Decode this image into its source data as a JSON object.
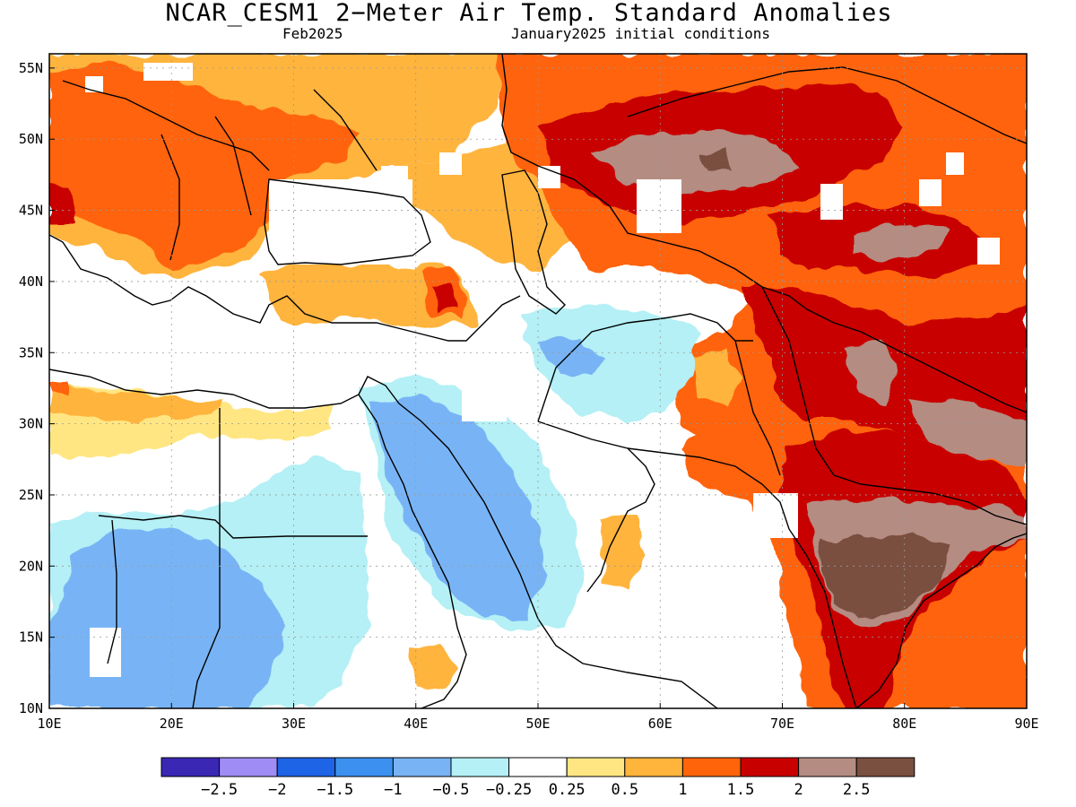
{
  "title": "NCAR_CESM1 2−Meter Air Temp. Standard Anomalies",
  "subtitle_left": "Feb2025",
  "subtitle_right": "January2025 initial conditions",
  "lon_ticks": [
    "10E",
    "20E",
    "30E",
    "40E",
    "50E",
    "60E",
    "70E",
    "80E",
    "90E"
  ],
  "lat_ticks": [
    "10N",
    "15N",
    "20N",
    "25N",
    "30N",
    "35N",
    "40N",
    "45N",
    "50N",
    "55N"
  ],
  "extent": {
    "lon": [
      10,
      90
    ],
    "lat": [
      10,
      56
    ]
  },
  "colorbar": {
    "colors": [
      "#3a28b4",
      "#9f8cf5",
      "#1e64e6",
      "#3c91f0",
      "#78b4f5",
      "#b4f0f5",
      "#ffffff",
      "#ffe682",
      "#ffb43c",
      "#ff640a",
      "#c80000",
      "#b48c82",
      "#7a5040"
    ],
    "labels": [
      "−2.5",
      "−2",
      "−1.5",
      "−1",
      "−0.5",
      "−0.25",
      "0.25",
      "0.5",
      "1",
      "1.5",
      "2",
      "2.5"
    ]
  }
}
